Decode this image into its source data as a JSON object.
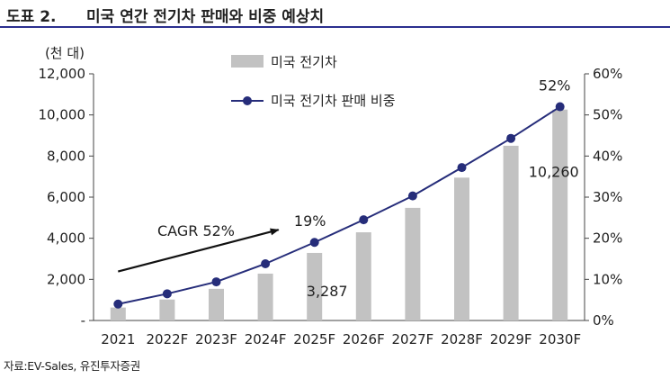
{
  "header": {
    "figure_label": "도표 2.",
    "title": "미국 연간 전기차 판매와 비중 예상치"
  },
  "source": "자료:EV-Sales, 유진투자증권",
  "chart_data": {
    "type": "bar",
    "categories": [
      "2021",
      "2022F",
      "2023F",
      "2024F",
      "2025F",
      "2026F",
      "2027F",
      "2028F",
      "2029F",
      "2030F"
    ],
    "series": [
      {
        "name": "미국 전기차",
        "type": "bar",
        "axis": "left",
        "color": "#c2c2c2",
        "values": [
          630,
          1020,
          1540,
          2280,
          3287,
          4290,
          5480,
          6950,
          8500,
          10260
        ]
      },
      {
        "name": "미국 전기차 판매 비중",
        "type": "line",
        "axis": "right",
        "color": "#262d7a",
        "values": [
          4,
          6.5,
          9.4,
          13.8,
          19,
          24.5,
          30.3,
          37.2,
          44.3,
          52
        ]
      }
    ],
    "y_left": {
      "unit_label": "(천 대)",
      "range": [
        0,
        12000
      ],
      "ticks": [
        "-",
        "2,000",
        "4,000",
        "6,000",
        "8,000",
        "10,000",
        "12,000"
      ]
    },
    "y_right": {
      "range": [
        0,
        60
      ],
      "ticks": [
        "0%",
        "10%",
        "20%",
        "30%",
        "40%",
        "50%",
        "60%"
      ]
    },
    "data_labels": [
      {
        "series": 0,
        "index": 4,
        "text": "3,287"
      },
      {
        "series": 0,
        "index": 9,
        "text": "10,260"
      },
      {
        "series": 1,
        "index": 4,
        "text": "19%"
      },
      {
        "series": 1,
        "index": 9,
        "text": "52%"
      }
    ],
    "annotation": {
      "text": "CAGR 52%",
      "arrow_from_index": 0,
      "arrow_to_index": 4
    },
    "grid": false,
    "legend_position": "top-left"
  }
}
